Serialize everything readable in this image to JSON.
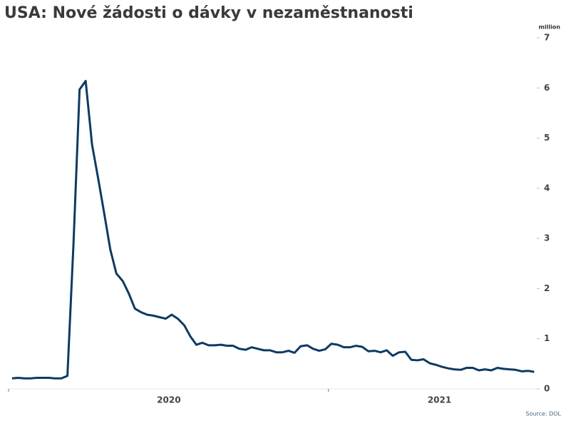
{
  "chart_data": {
    "type": "line",
    "title": "USA: Nové žádosti o dávky v nezaměstnanosti",
    "y_unit": "million",
    "source": "Source: DOL",
    "color": "#0d3a63",
    "x": [
      2020.011,
      2020.03,
      2020.049,
      2020.069,
      2020.088,
      2020.107,
      2020.126,
      2020.145,
      2020.165,
      2020.184,
      2020.203,
      2020.222,
      2020.241,
      2020.261,
      2020.28,
      2020.299,
      2020.318,
      2020.337,
      2020.357,
      2020.376,
      2020.395,
      2020.414,
      2020.433,
      2020.453,
      2020.472,
      2020.491,
      2020.51,
      2020.529,
      2020.549,
      2020.568,
      2020.587,
      2020.606,
      2020.625,
      2020.645,
      2020.664,
      2020.683,
      2020.702,
      2020.721,
      2020.741,
      2020.76,
      2020.779,
      2020.798,
      2020.817,
      2020.837,
      2020.856,
      2020.875,
      2020.894,
      2020.913,
      2020.933,
      2020.952,
      2020.971,
      2020.99,
      2021.009,
      2021.029,
      2021.048,
      2021.067,
      2021.086,
      2021.105,
      2021.125,
      2021.144,
      2021.163,
      2021.182,
      2021.201,
      2021.221,
      2021.24,
      2021.259,
      2021.278,
      2021.297,
      2021.317,
      2021.336,
      2021.355,
      2021.374,
      2021.393,
      2021.413,
      2021.432,
      2021.451,
      2021.47,
      2021.489,
      2021.509,
      2021.528,
      2021.547,
      2021.566,
      2021.585,
      2021.605,
      2021.624,
      2021.643
    ],
    "values": [
      0.21,
      0.22,
      0.21,
      0.21,
      0.22,
      0.22,
      0.22,
      0.21,
      0.21,
      0.26,
      2.9,
      5.97,
      6.14,
      4.87,
      4.2,
      3.5,
      2.78,
      2.3,
      2.15,
      1.9,
      1.6,
      1.53,
      1.48,
      1.46,
      1.43,
      1.4,
      1.48,
      1.4,
      1.27,
      1.05,
      0.88,
      0.92,
      0.87,
      0.87,
      0.88,
      0.86,
      0.86,
      0.8,
      0.78,
      0.83,
      0.8,
      0.77,
      0.77,
      0.73,
      0.73,
      0.76,
      0.72,
      0.85,
      0.87,
      0.8,
      0.76,
      0.79,
      0.9,
      0.88,
      0.83,
      0.83,
      0.86,
      0.84,
      0.75,
      0.76,
      0.73,
      0.77,
      0.66,
      0.73,
      0.74,
      0.58,
      0.57,
      0.59,
      0.51,
      0.48,
      0.44,
      0.41,
      0.39,
      0.38,
      0.42,
      0.42,
      0.37,
      0.39,
      0.37,
      0.42,
      0.4,
      0.39,
      0.38,
      0.35,
      0.36,
      0.34
    ],
    "xlim": [
      2020,
      2021.66
    ],
    "xticks": [
      {
        "value": 2020.501,
        "label": "2020"
      },
      {
        "value": 2021.347,
        "label": "2021"
      }
    ],
    "x_separators": [
      2020,
      2021
    ],
    "ylim": [
      0,
      7
    ],
    "yticks": [
      0,
      1,
      2,
      3,
      4,
      5,
      6,
      7
    ]
  }
}
